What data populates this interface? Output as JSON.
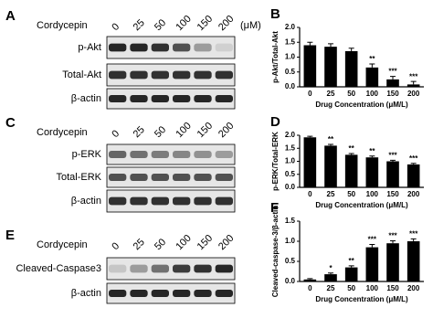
{
  "blots": [
    {
      "label": "A",
      "treatment": "Cordycepin",
      "doses": [
        "0",
        "25",
        "50",
        "100",
        "150",
        "200"
      ],
      "unit": "(μM)",
      "rows": [
        "p-Akt",
        "Total-Akt",
        "β-actin"
      ]
    },
    {
      "label": "C",
      "treatment": "Cordycepin",
      "doses": [
        "0",
        "25",
        "50",
        "100",
        "150",
        "200"
      ],
      "rows": [
        "p-ERK",
        "Total-ERK",
        "β-actin"
      ]
    },
    {
      "label": "E",
      "treatment": "Cordycepin",
      "doses": [
        "0",
        "25",
        "50",
        "100",
        "150",
        "200"
      ],
      "rows": [
        "Cleaved-Caspase3",
        "β-actin"
      ]
    }
  ],
  "chart_data": [
    {
      "type": "bar",
      "panel": "B",
      "categories": [
        "0",
        "25",
        "50",
        "100",
        "150",
        "200"
      ],
      "values": [
        1.4,
        1.35,
        1.2,
        0.65,
        0.25,
        0.08
      ],
      "errors": [
        0.1,
        0.1,
        0.1,
        0.12,
        0.1,
        0.1
      ],
      "sig_labels": [
        null,
        null,
        null,
        "**",
        "***",
        "***"
      ],
      "color": "#000000",
      "ylim": [
        0,
        2
      ],
      "yticks": [
        {
          "value": 0,
          "label": "0.0"
        },
        0.5,
        {
          "value": 1,
          "label": "1.0"
        },
        1.5,
        {
          "value": 2,
          "label": "2.0"
        }
      ],
      "y_label": "p-Akt/Total-Akt",
      "x_label": "Drug Concentration (μM/L)"
    },
    {
      "type": "bar",
      "panel": "D",
      "categories": [
        "0",
        "25",
        "50",
        "100",
        "150",
        "200"
      ],
      "values": [
        1.92,
        1.6,
        1.25,
        1.15,
        1.0,
        0.88
      ],
      "errors": [
        0.04,
        0.05,
        0.05,
        0.05,
        0.04,
        0.04
      ],
      "sig_labels": [
        null,
        "**",
        "**",
        "**",
        "***",
        "***"
      ],
      "color": "#000000",
      "ylim": [
        0,
        2
      ],
      "yticks": [
        {
          "value": 0,
          "label": "0.0"
        },
        0.5,
        {
          "value": 1,
          "label": "1.0"
        },
        1.5,
        {
          "value": 2,
          "label": "2.0"
        }
      ],
      "y_label": "p-ERK/Total-ERK",
      "x_label": "Drug Concentration (μM/L)"
    },
    {
      "type": "bar",
      "panel": "F",
      "categories": [
        "0",
        "25",
        "50",
        "100",
        "150",
        "200"
      ],
      "values": [
        0.05,
        0.18,
        0.35,
        0.85,
        0.95,
        1.0
      ],
      "errors": [
        0.02,
        0.03,
        0.04,
        0.07,
        0.06,
        0.06
      ],
      "sig_labels": [
        null,
        "*",
        "**",
        "***",
        "***",
        "***"
      ],
      "color": "#000000",
      "ylim": [
        0,
        1.5
      ],
      "yticks": [
        {
          "value": 0,
          "label": "0.0"
        },
        0.5,
        {
          "value": 1,
          "label": "1.0"
        },
        1.5
      ],
      "y_label": "Cleaved-caspase-3/β-actin",
      "x_label": "Drug Concentration (μM/L)"
    }
  ]
}
